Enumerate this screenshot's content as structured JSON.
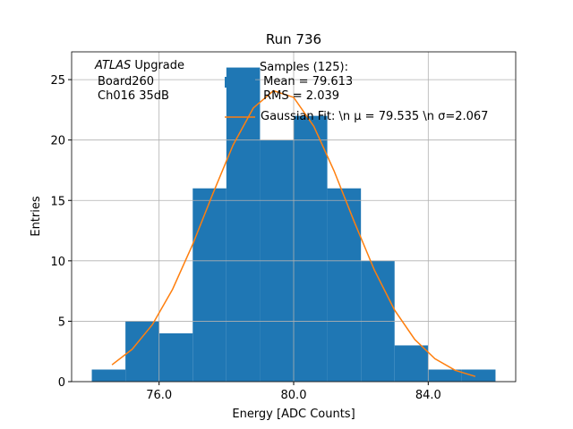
{
  "chart_data": {
    "type": "histogram",
    "title": "Run 736",
    "xlabel": "Energy [ADC Counts]",
    "ylabel": "Entries",
    "bins": [
      74,
      75,
      76,
      77,
      78,
      79,
      80,
      81,
      82,
      83,
      84,
      85,
      86
    ],
    "series": [
      {
        "name": "Samples (125):\n Mean = 79.613\n RMS = 2.039",
        "color": "#1f77b4",
        "values": [
          1,
          5,
          4,
          16,
          26,
          20,
          22,
          16,
          10,
          3,
          1,
          1
        ]
      },
      {
        "name": "Gaussian Fit: \\n μ = 79.535 \\n σ=2.067",
        "type": "line",
        "color": "#ff7f0e",
        "x": [
          74.6,
          75.2,
          75.8,
          76.4,
          77.0,
          77.6,
          78.2,
          78.8,
          79.4,
          80.0,
          80.6,
          81.2,
          81.8,
          82.4,
          83.0,
          83.6,
          84.2,
          84.8,
          85.4
        ],
        "values": [
          1.39,
          2.68,
          4.72,
          7.64,
          11.37,
          15.57,
          19.59,
          22.65,
          24.08,
          23.53,
          21.13,
          17.45,
          13.24,
          9.23,
          5.92,
          3.49,
          1.89,
          0.94,
          0.43
        ]
      }
    ],
    "xlim": [
      73.4,
      86.6
    ],
    "ylim": [
      0,
      27.3
    ],
    "xticks": [
      {
        "value": 76,
        "label": "76.0"
      },
      {
        "value": 80,
        "label": "80.0"
      },
      {
        "value": 84,
        "label": "84.0"
      }
    ],
    "yticks": [
      0,
      5,
      10,
      15,
      20,
      25
    ],
    "grid": true,
    "annotation": {
      "experiment": "ATLAS",
      "label": "Upgrade",
      "lines": [
        "Board260",
        "Ch016 35dB"
      ]
    }
  }
}
